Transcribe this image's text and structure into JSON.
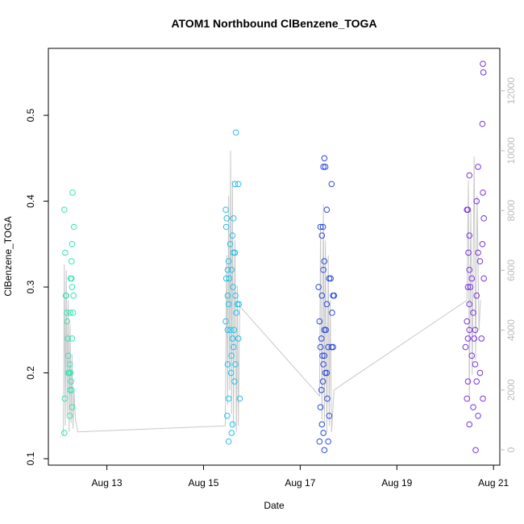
{
  "chart_data": {
    "type": "scatter",
    "title": "ATOM1 Northbound ClBenzene_TOGA",
    "xlabel": "Date",
    "ylabel": "ClBenzene_TOGA",
    "xlim": [
      11.79,
      21.13
    ],
    "xticks": [
      {
        "value": 13,
        "label": "Aug 13"
      },
      {
        "value": 15,
        "label": "Aug 15"
      },
      {
        "value": 17,
        "label": "Aug 17"
      },
      {
        "value": 19,
        "label": "Aug 19"
      },
      {
        "value": 21,
        "label": "Aug 21"
      }
    ],
    "ylim": [
      0.0925,
      0.578
    ],
    "yticks": [
      0.1,
      0.2,
      0.3,
      0.4,
      0.5
    ],
    "y2lim": [
      -512,
      13420
    ],
    "y2ticks": [
      0,
      2000,
      4000,
      6000,
      8000,
      10000,
      12000
    ],
    "y2color": "#bbbbbb",
    "series": [
      {
        "type": "line",
        "axis": "y2",
        "color": "#c8c8c8",
        "x": [
          12.1,
          12.12,
          12.14,
          12.16,
          12.18,
          12.2,
          12.22,
          12.24,
          12.26,
          12.28,
          12.3,
          12.32,
          12.35,
          12.4,
          15.45,
          15.48,
          15.5,
          15.52,
          15.54,
          15.56,
          15.58,
          15.6,
          15.62,
          15.65,
          15.68,
          15.7,
          15.72,
          15.75,
          17.4,
          17.42,
          17.45,
          17.48,
          17.5,
          17.52,
          17.55,
          17.58,
          17.6,
          17.62,
          17.65,
          17.7,
          20.45,
          20.48,
          20.5,
          20.53,
          20.56,
          20.6,
          20.63,
          20.66,
          20.7,
          20.73
        ],
        "values": [
          500,
          6200,
          800,
          6000,
          1200,
          5000,
          600,
          4200,
          900,
          3200,
          700,
          2000,
          1000,
          600,
          800,
          6500,
          1500,
          8500,
          2000,
          10000,
          1200,
          9000,
          800,
          7000,
          600,
          5500,
          800,
          4800,
          1800,
          7500,
          1000,
          8200,
          800,
          7000,
          600,
          6500,
          800,
          5000,
          600,
          2000,
          5000,
          9000,
          1600,
          8000,
          2500,
          9800,
          3000,
          8500,
          4000,
          5000
        ]
      },
      {
        "type": "scatter",
        "color": "#33e6b2",
        "x": [
          12.12,
          12.14,
          12.15,
          12.16,
          12.17,
          12.18,
          12.19,
          12.2,
          12.21,
          12.22,
          12.13,
          12.12,
          12.25,
          12.27,
          12.28,
          12.24,
          12.3,
          12.29,
          12.32,
          12.28,
          12.27,
          12.31,
          12.28,
          12.23,
          12.25,
          12.26,
          12.24,
          12.27,
          12.28,
          12.23,
          12.2
        ],
        "values": [
          0.39,
          0.34,
          0.29,
          0.29,
          0.27,
          0.26,
          0.24,
          0.22,
          0.2,
          0.2,
          0.17,
          0.13,
          0.31,
          0.31,
          0.3,
          0.27,
          0.27,
          0.41,
          0.37,
          0.35,
          0.33,
          0.29,
          0.24,
          0.21,
          0.2,
          0.19,
          0.18,
          0.18,
          0.16,
          0.15,
          0.2
        ]
      },
      {
        "type": "scatter",
        "color": "#22c0ea",
        "x": [
          15.46,
          15.48,
          15.47,
          15.6,
          15.55,
          15.62,
          15.65,
          15.52,
          15.5,
          15.58,
          15.47,
          15.53,
          15.61,
          15.5,
          15.66,
          15.52,
          15.7,
          15.68,
          15.46,
          15.5,
          15.56,
          15.63,
          15.6,
          15.72,
          15.62,
          15.58,
          15.5,
          15.66,
          15.57,
          15.64,
          15.52,
          15.75,
          15.49,
          15.6,
          15.58,
          15.52,
          15.65,
          15.72,
          15.67,
          15.62,
          15.73
        ],
        "values": [
          0.39,
          0.38,
          0.37,
          0.36,
          0.35,
          0.34,
          0.34,
          0.33,
          0.32,
          0.32,
          0.31,
          0.31,
          0.3,
          0.29,
          0.29,
          0.28,
          0.28,
          0.27,
          0.26,
          0.25,
          0.25,
          0.25,
          0.24,
          0.24,
          0.23,
          0.22,
          0.21,
          0.21,
          0.2,
          0.19,
          0.17,
          0.17,
          0.15,
          0.14,
          0.13,
          0.12,
          0.42,
          0.42,
          0.48,
          0.38,
          0.28
        ]
      },
      {
        "type": "scatter",
        "color": "#2a4ade",
        "x": [
          17.5,
          17.48,
          17.52,
          17.65,
          17.55,
          17.42,
          17.47,
          17.45,
          17.5,
          17.48,
          17.6,
          17.63,
          17.45,
          17.68,
          17.55,
          17.66,
          17.4,
          17.5,
          17.53,
          17.44,
          17.42,
          17.58,
          17.65,
          17.46,
          17.5,
          17.48,
          17.52,
          17.55,
          17.47,
          17.44,
          17.56,
          17.42,
          17.6,
          17.45,
          17.48,
          17.4,
          17.58,
          17.5,
          17.38,
          17.7,
          17.68
        ],
        "values": [
          0.45,
          0.44,
          0.44,
          0.42,
          0.39,
          0.37,
          0.37,
          0.36,
          0.33,
          0.32,
          0.31,
          0.31,
          0.29,
          0.29,
          0.28,
          0.27,
          0.26,
          0.25,
          0.25,
          0.24,
          0.23,
          0.23,
          0.23,
          0.22,
          0.22,
          0.21,
          0.2,
          0.2,
          0.19,
          0.18,
          0.17,
          0.16,
          0.15,
          0.14,
          0.13,
          0.12,
          0.12,
          0.11,
          0.3,
          0.29,
          0.23
        ]
      },
      {
        "type": "scatter",
        "color": "#7a34e0",
        "x": [
          20.78,
          20.79,
          20.77,
          20.68,
          20.5,
          20.78,
          20.65,
          20.45,
          20.47,
          20.8,
          20.5,
          20.77,
          20.48,
          20.68,
          20.72,
          20.5,
          20.55,
          20.8,
          20.47,
          20.52,
          20.65,
          20.5,
          20.58,
          20.45,
          20.5,
          20.62,
          20.47,
          20.6,
          20.75,
          20.42,
          20.55,
          20.62,
          20.72,
          20.47,
          20.65,
          20.45,
          20.78,
          20.58,
          20.68,
          20.5,
          20.63
        ],
        "values": [
          0.56,
          0.55,
          0.49,
          0.44,
          0.43,
          0.41,
          0.4,
          0.39,
          0.39,
          0.38,
          0.36,
          0.35,
          0.34,
          0.34,
          0.33,
          0.32,
          0.31,
          0.31,
          0.3,
          0.3,
          0.29,
          0.28,
          0.27,
          0.26,
          0.25,
          0.25,
          0.24,
          0.24,
          0.24,
          0.23,
          0.22,
          0.21,
          0.2,
          0.19,
          0.19,
          0.17,
          0.17,
          0.16,
          0.15,
          0.14,
          0.11
        ]
      }
    ]
  }
}
